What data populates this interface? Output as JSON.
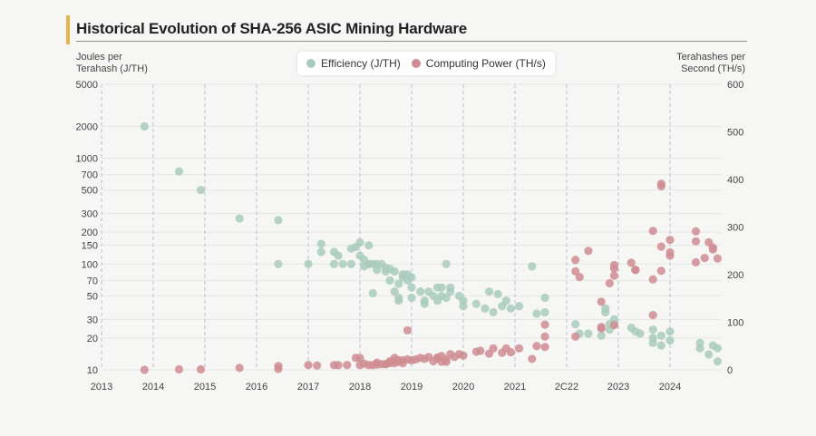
{
  "chart_data": {
    "type": "scatter",
    "title": "Historical Evolution of SHA-256 ASIC Mining Hardware",
    "x_ticks": [
      "2013",
      "2014",
      "2015",
      "2016",
      "2017",
      "2018",
      "2019",
      "2020",
      "2021",
      "2C22",
      "2023",
      "2024"
    ],
    "xlim": [
      2013.0,
      2025.0
    ],
    "y_left": {
      "label": "Joules per Terahash (J/TH)",
      "scale": "log",
      "ticks": [
        "5000",
        "2000",
        "1000",
        "700",
        "500",
        "300",
        "200",
        "150",
        "100",
        "70",
        "50",
        "30",
        "20",
        "10"
      ],
      "range": [
        10,
        5000
      ]
    },
    "y_right": {
      "label": "Terahashes per Second (TH/s)",
      "scale": "linear",
      "ticks": [
        "600",
        "500",
        "400",
        "300",
        "200",
        "100",
        "0"
      ],
      "range": [
        0,
        600
      ]
    },
    "grid": "dashed vertical at year ticks, faint horizontal at left-axis ticks",
    "legend_position": "top-center",
    "series": [
      {
        "name": "Efficiency (J/TH)",
        "axis": "left",
        "color": "#a9cbbd",
        "x": [
          2013.83,
          2014.5,
          2014.92,
          2015.67,
          2016.42,
          2016.42,
          2017.0,
          2017.25,
          2017.25,
          2017.5,
          2017.5,
          2017.58,
          2017.67,
          2017.83,
          2017.83,
          2017.92,
          2018.0,
          2018.0,
          2018.08,
          2018.08,
          2018.17,
          2018.17,
          2018.17,
          2018.25,
          2018.25,
          2018.33,
          2018.33,
          2018.42,
          2018.5,
          2018.5,
          2018.58,
          2018.58,
          2018.67,
          2018.67,
          2018.75,
          2018.75,
          2018.75,
          2018.83,
          2018.83,
          2018.92,
          2018.92,
          2019.0,
          2019.0,
          2019.0,
          2019.17,
          2019.25,
          2019.25,
          2019.33,
          2019.42,
          2019.5,
          2019.5,
          2019.58,
          2019.58,
          2019.67,
          2019.67,
          2019.75,
          2019.75,
          2019.92,
          2020.0,
          2020.0,
          2020.25,
          2020.42,
          2020.5,
          2020.58,
          2020.67,
          2020.75,
          2020.83,
          2020.92,
          2021.08,
          2021.33,
          2021.42,
          2021.58,
          2021.58,
          2022.17,
          2022.25,
          2022.42,
          2022.67,
          2022.75,
          2022.75,
          2022.83,
          2022.83,
          2022.92,
          2022.92,
          2023.25,
          2023.33,
          2023.42,
          2023.67,
          2023.67,
          2023.67,
          2023.83,
          2023.83,
          2024.0,
          2024.0,
          2024.58,
          2024.58,
          2024.75,
          2024.83,
          2024.92,
          2024.92
        ],
        "values": [
          2000,
          750,
          500,
          270,
          260,
          100,
          100,
          155,
          130,
          100,
          130,
          120,
          100,
          140,
          100,
          145,
          160,
          120,
          110,
          95,
          150,
          100,
          100,
          100,
          53,
          100,
          88,
          100,
          92,
          85,
          90,
          70,
          85,
          55,
          65,
          48,
          45,
          80,
          75,
          80,
          70,
          75,
          60,
          48,
          55,
          45,
          42,
          55,
          50,
          60,
          45,
          60,
          50,
          100,
          48,
          60,
          55,
          50,
          45,
          40,
          42,
          38,
          55,
          35,
          52,
          40,
          45,
          38,
          40,
          95,
          34,
          35,
          48,
          27,
          22,
          22,
          21,
          38,
          35,
          27,
          24,
          30,
          27,
          25,
          23,
          22,
          24,
          20,
          18,
          21,
          17,
          23,
          19,
          16,
          18,
          14,
          17,
          16,
          12
        ]
      },
      {
        "name": "Computing Power (TH/s)",
        "axis": "right",
        "color": "#cf8d92",
        "x": [
          2013.83,
          2014.5,
          2014.92,
          2015.67,
          2016.42,
          2016.42,
          2017.0,
          2017.17,
          2017.5,
          2017.58,
          2017.75,
          2017.92,
          2018.0,
          2018.0,
          2018.08,
          2018.17,
          2018.25,
          2018.33,
          2018.33,
          2018.42,
          2018.5,
          2018.5,
          2018.58,
          2018.58,
          2018.67,
          2018.67,
          2018.67,
          2018.75,
          2018.75,
          2018.83,
          2018.83,
          2018.92,
          2018.92,
          2019.0,
          2019.08,
          2019.17,
          2019.25,
          2019.33,
          2019.42,
          2019.5,
          2019.5,
          2019.58,
          2019.58,
          2019.67,
          2019.67,
          2019.75,
          2019.83,
          2019.92,
          2020.0,
          2020.25,
          2020.33,
          2020.5,
          2020.58,
          2020.75,
          2020.83,
          2020.92,
          2021.08,
          2021.33,
          2021.42,
          2021.58,
          2021.58,
          2021.58,
          2022.17,
          2022.17,
          2022.17,
          2022.25,
          2022.42,
          2022.67,
          2022.67,
          2022.67,
          2022.83,
          2022.92,
          2022.92,
          2022.92,
          2022.92,
          2023.25,
          2023.33,
          2023.33,
          2023.67,
          2023.67,
          2023.67,
          2023.83,
          2023.83,
          2023.83,
          2023.83,
          2024.0,
          2024.0,
          2024.0,
          2024.5,
          2024.5,
          2024.5,
          2024.67,
          2024.75,
          2024.83,
          2024.83,
          2024.92
        ],
        "values": [
          0,
          1,
          1,
          4,
          2,
          8,
          10,
          9,
          10,
          10,
          10,
          25,
          25,
          10,
          13,
          10,
          10,
          11,
          15,
          12,
          12,
          12,
          14,
          18,
          25,
          20,
          14,
          17,
          20,
          20,
          14,
          22,
          83,
          20,
          22,
          25,
          23,
          27,
          18,
          26,
          24,
          29,
          17,
          17,
          22,
          33,
          27,
          33,
          30,
          38,
          40,
          34,
          45,
          36,
          45,
          37,
          45,
          23,
          50,
          48,
          95,
          70,
          70,
          207,
          231,
          195,
          250,
          90,
          143,
          87,
          182,
          220,
          198,
          213,
          94,
          225,
          210,
          210,
          292,
          115,
          190,
          391,
          386,
          208,
          259,
          240,
          247,
          273,
          226,
          291,
          270,
          235,
          268,
          257,
          253,
          234
        ]
      }
    ]
  },
  "legend": {
    "efficiency_label": "Efficiency (J/TH)",
    "power_label": "Computing Power (TH/s)"
  }
}
